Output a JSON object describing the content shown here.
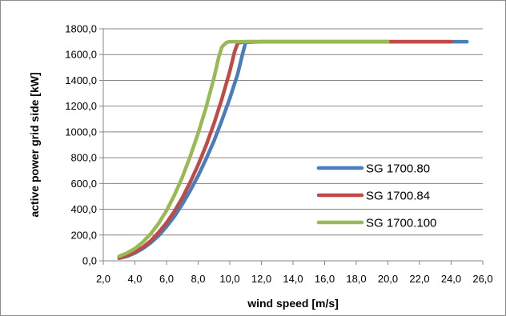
{
  "chart_data": {
    "type": "line",
    "title": "",
    "xlabel": "wind speed [m/s]",
    "ylabel": "active power grid side [kW]",
    "xlim": [
      2.0,
      26.0
    ],
    "ylim": [
      0.0,
      1800.0
    ],
    "xticks": [
      2.0,
      4.0,
      6.0,
      8.0,
      10.0,
      12.0,
      14.0,
      16.0,
      18.0,
      20.0,
      22.0,
      24.0,
      26.0
    ],
    "yticks": [
      0.0,
      200.0,
      400.0,
      600.0,
      800.0,
      1000.0,
      1200.0,
      1400.0,
      1600.0,
      1800.0
    ],
    "xtick_labels": [
      "2,0",
      "4,0",
      "6,0",
      "8,0",
      "10,0",
      "12,0",
      "14,0",
      "16,0",
      "18,0",
      "20,0",
      "22,0",
      "24,0",
      "26,0"
    ],
    "ytick_labels": [
      "0,0",
      "200,0",
      "400,0",
      "600,0",
      "800,0",
      "1000,0",
      "1200,0",
      "1400,0",
      "1600,0",
      "1800,0"
    ],
    "grid": "horizontal",
    "legend_position": "right",
    "series": [
      {
        "name": "SG 1700.80",
        "color": "#4a7ebb",
        "x": [
          3.0,
          3.5,
          4.0,
          4.5,
          5.0,
          5.5,
          6.0,
          6.5,
          7.0,
          7.5,
          8.0,
          8.5,
          9.0,
          9.5,
          10.0,
          10.5,
          10.8,
          11.0,
          12.0,
          16.0,
          20.0,
          24.0,
          25.0
        ],
        "y": [
          20,
          35,
          60,
          95,
          140,
          195,
          265,
          345,
          440,
          545,
          660,
          790,
          930,
          1090,
          1260,
          1450,
          1600,
          1695,
          1700,
          1700,
          1700,
          1700,
          1700
        ]
      },
      {
        "name": "SG 1700.84",
        "color": "#be4b48",
        "x": [
          3.0,
          3.5,
          4.0,
          4.5,
          5.0,
          5.5,
          6.0,
          6.5,
          7.0,
          7.5,
          8.0,
          8.5,
          9.0,
          9.5,
          10.0,
          10.3,
          10.5,
          11.0,
          12.0,
          16.0,
          20.0,
          24.0
        ],
        "y": [
          22,
          40,
          68,
          105,
          155,
          220,
          295,
          385,
          490,
          610,
          745,
          895,
          1065,
          1255,
          1470,
          1620,
          1690,
          1700,
          1700,
          1700,
          1700,
          1700
        ]
      },
      {
        "name": "SG 1700.100",
        "color": "#98b954",
        "x": [
          3.0,
          3.5,
          4.0,
          4.5,
          5.0,
          5.5,
          6.0,
          6.5,
          7.0,
          7.5,
          8.0,
          8.5,
          9.0,
          9.3,
          9.5,
          9.8,
          10.0,
          11.0,
          12.0,
          16.0,
          20.0
        ],
        "y": [
          35,
          60,
          95,
          145,
          210,
          290,
          390,
          510,
          650,
          810,
          990,
          1190,
          1420,
          1580,
          1660,
          1695,
          1700,
          1700,
          1700,
          1700,
          1700
        ]
      }
    ]
  }
}
